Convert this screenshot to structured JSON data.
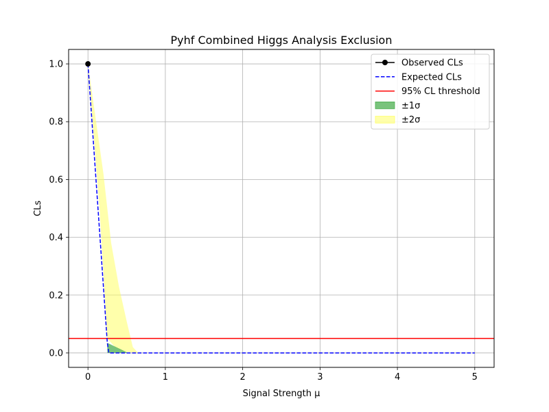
{
  "chart_data": {
    "type": "line",
    "title": "Pyhf Combined Higgs Analysis Exclusion",
    "xlabel": "Signal Strength μ",
    "ylabel": "CLs",
    "xlim": [
      -0.25,
      5.25
    ],
    "ylim": [
      -0.05,
      1.05
    ],
    "xticks": [
      0,
      1,
      2,
      3,
      4,
      5
    ],
    "yticks": [
      0.0,
      0.2,
      0.4,
      0.6,
      0.8,
      1.0
    ],
    "xtick_labels": [
      "0",
      "1",
      "2",
      "3",
      "4",
      "5"
    ],
    "ytick_labels": [
      "0.0",
      "0.2",
      "0.4",
      "0.6",
      "0.8",
      "1.0"
    ],
    "grid": true,
    "legend_position": "top-right",
    "series": [
      {
        "name": "Observed CLs",
        "style": "solid-marker",
        "color": "#000000",
        "x": [
          0.0
        ],
        "y": [
          1.0
        ]
      },
      {
        "name": "Expected CLs",
        "style": "dashed",
        "color": "#0000ff",
        "x": [
          0.0,
          0.25,
          0.27,
          0.5,
          1.0,
          2.0,
          3.0,
          4.0,
          5.0
        ],
        "y": [
          1.0,
          0.035,
          0.0,
          0.0,
          0.0,
          0.0,
          0.0,
          0.0,
          0.0
        ]
      }
    ],
    "threshold": {
      "name": "95% CL threshold",
      "color": "#ff0000",
      "y": 0.05
    },
    "bands": [
      {
        "name": "±1σ",
        "color": "#4caf50",
        "upper": [
          [
            0.25,
            0.035
          ],
          [
            0.52,
            0.0
          ]
        ],
        "lower": [
          [
            0.25,
            0.0
          ],
          [
            0.52,
            0.0
          ]
        ]
      },
      {
        "name": "±2σ",
        "color": "#ffff66",
        "upper": [
          [
            0.0,
            1.0
          ],
          [
            0.2,
            0.62
          ],
          [
            0.3,
            0.38
          ],
          [
            0.4,
            0.23
          ],
          [
            0.5,
            0.11
          ],
          [
            0.58,
            0.02
          ],
          [
            0.65,
            0.0
          ]
        ],
        "lower": [
          [
            0.0,
            1.0
          ],
          [
            0.15,
            0.5
          ],
          [
            0.25,
            0.05
          ],
          [
            0.35,
            0.02
          ],
          [
            0.45,
            0.005
          ],
          [
            0.65,
            0.0
          ]
        ]
      }
    ]
  }
}
